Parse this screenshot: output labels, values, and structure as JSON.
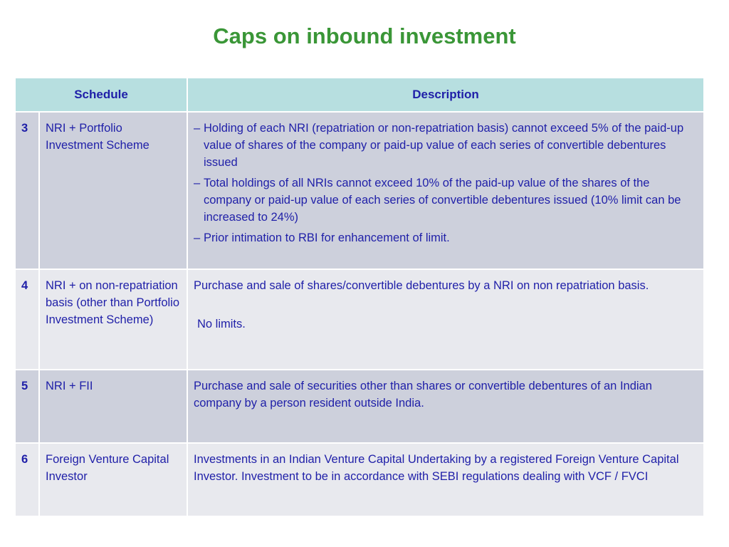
{
  "title": "Caps on inbound investment",
  "table": {
    "headers": {
      "schedule": "Schedule",
      "description": "Description"
    },
    "rows": [
      {
        "number": "3",
        "schedule": "NRI + Portfolio Investment Scheme",
        "bullets": [
          "Holding of each NRI (repatriation or non-repatriation basis) cannot exceed 5% of the paid-up value of shares of the company or paid-up value of each series of convertible debentures issued",
          "Total holdings of all NRIs cannot exceed 10% of the paid-up value of the shares of the company or paid-up value of each series of convertible debentures issued (10% limit can be increased to 24%)",
          "Prior intimation to RBI for enhancement of limit."
        ]
      },
      {
        "number": "4",
        "schedule": "NRI + on non-repatriation basis (other than Portfolio Investment Scheme)",
        "description": "Purchase and sale of shares/convertible debentures by a NRI on non repatriation basis.",
        "description2": "No limits."
      },
      {
        "number": "5",
        "schedule": "NRI + FII",
        "description": "Purchase and sale of securities other than shares or convertible debentures of an Indian company by a person resident outside India."
      },
      {
        "number": "6",
        "schedule": "Foreign Venture Capital Investor",
        "description": "Investments in an Indian Venture Capital Undertaking by a registered Foreign Venture Capital Investor. Investment to be in accordance with SEBI regulations dealing with VCF / FVCI"
      }
    ]
  },
  "colors": {
    "title": "#3a9637",
    "text": "#1f1fa8",
    "header_bg": "#b7dfe0",
    "row_dark": "#cdd0dc",
    "row_light": "#e8e9ee"
  }
}
